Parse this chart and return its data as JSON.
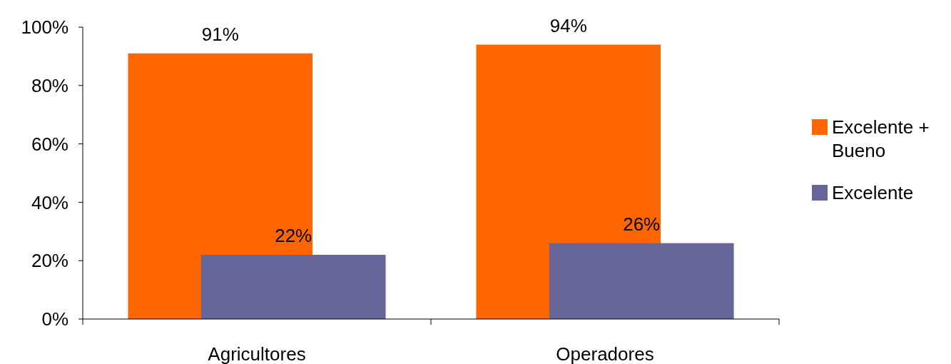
{
  "chart_data": {
    "type": "bar",
    "categories": [
      "Agricultores",
      "Operadores"
    ],
    "series": [
      {
        "name": "Excelente + Bueno",
        "color": "#ff6600",
        "values": [
          91,
          94
        ],
        "value_labels": [
          "91%",
          "94%"
        ]
      },
      {
        "name": "Excelente",
        "color": "#666699",
        "values": [
          22,
          26
        ],
        "value_labels": [
          "22%",
          "26%"
        ]
      }
    ],
    "ylim": [
      0,
      100
    ],
    "yticks": [
      {
        "value": 0,
        "label": "0%"
      },
      {
        "value": 20,
        "label": "20%"
      },
      {
        "value": 40,
        "label": "40%"
      },
      {
        "value": 60,
        "label": "60%"
      },
      {
        "value": 80,
        "label": "80%"
      },
      {
        "value": 100,
        "label": "100%"
      }
    ],
    "grid": false,
    "legend": "right"
  }
}
